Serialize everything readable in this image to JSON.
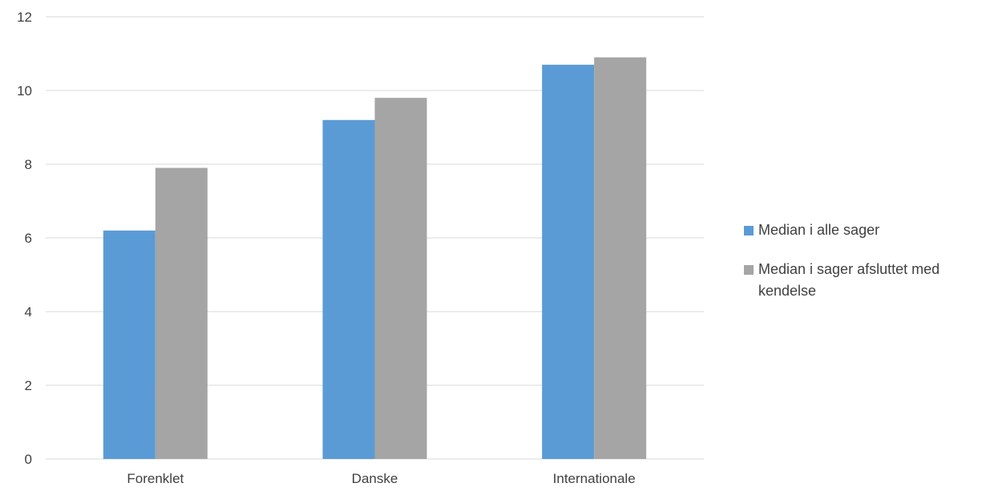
{
  "chart_data": {
    "type": "bar",
    "categories": [
      "Forenklet",
      "Danske",
      "Internationale"
    ],
    "series": [
      {
        "name": "Median i alle sager",
        "values": [
          6.2,
          9.2,
          10.7
        ],
        "color": "#5B9BD5"
      },
      {
        "name": "Median i sager afsluttet med kendelse",
        "values": [
          7.9,
          9.8,
          10.9
        ],
        "color": "#A5A5A5"
      }
    ],
    "ylim": [
      0,
      12
    ],
    "yticks": [
      "0",
      "2",
      "4",
      "6",
      "8",
      "10",
      "12"
    ],
    "grid": true,
    "legend_position": "right"
  }
}
